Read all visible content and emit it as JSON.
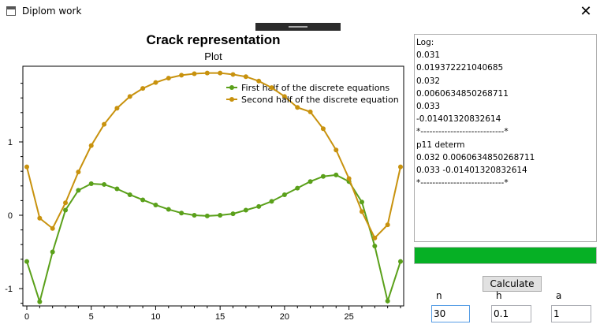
{
  "window": {
    "title": "Diplom work",
    "close_glyph": "✕"
  },
  "chart_data": {
    "type": "line",
    "title": "Crack representation",
    "subtitle": "Plot",
    "xlabel": "",
    "ylabel": "",
    "xlim": [
      -0.5,
      29
    ],
    "ylim": [
      -1.23,
      1.98
    ],
    "x_ticks": [
      0,
      5,
      10,
      15,
      20,
      25
    ],
    "y_ticks": [
      -1,
      0,
      1
    ],
    "legend_position": "top-right",
    "grid": false,
    "x": [
      0,
      1,
      2,
      3,
      4,
      5,
      6,
      7,
      8,
      9,
      10,
      11,
      12,
      13,
      14,
      15,
      16,
      17,
      18,
      19,
      20,
      21,
      22,
      23,
      24,
      25,
      26,
      27,
      28,
      29
    ],
    "series": [
      {
        "name": "First half of the discrete equations",
        "color": "#5aa01a",
        "values": [
          -0.63,
          -1.18,
          -0.5,
          0.07,
          0.34,
          0.43,
          0.42,
          0.36,
          0.28,
          0.21,
          0.14,
          0.08,
          0.03,
          0.0,
          -0.01,
          0.0,
          0.02,
          0.07,
          0.12,
          0.19,
          0.28,
          0.37,
          0.46,
          0.53,
          0.55,
          0.46,
          0.18,
          -0.42,
          -1.17,
          -0.63
        ]
      },
      {
        "name": "Second half of the discrete equation",
        "color": "#c8920e",
        "values": [
          0.66,
          -0.04,
          -0.18,
          0.17,
          0.59,
          0.95,
          1.24,
          1.46,
          1.62,
          1.73,
          1.81,
          1.87,
          1.91,
          1.93,
          1.94,
          1.94,
          1.92,
          1.89,
          1.83,
          1.74,
          1.62,
          1.47,
          1.41,
          1.18,
          0.89,
          0.5,
          0.05,
          -0.31,
          -0.13,
          0.66
        ]
      }
    ]
  },
  "log": {
    "lines": [
      "Log:",
      "0.031",
      "0.019372221040685",
      "0.032",
      "0.0060634850268711",
      "0.033",
      "-0.01401320832614",
      "*----------------------------*",
      "p11 determ",
      "0.032 0.0060634850268711",
      "0.033 -0.01401320832614",
      "*----------------------------*"
    ]
  },
  "progress": {
    "fraction": 1.0,
    "color": "#06b025"
  },
  "controls": {
    "calculate_label": "Calculate",
    "n_label": "n",
    "n_value": "30",
    "h_label": "h",
    "h_value": "0.1",
    "a_label": "a",
    "a_value": "1"
  }
}
